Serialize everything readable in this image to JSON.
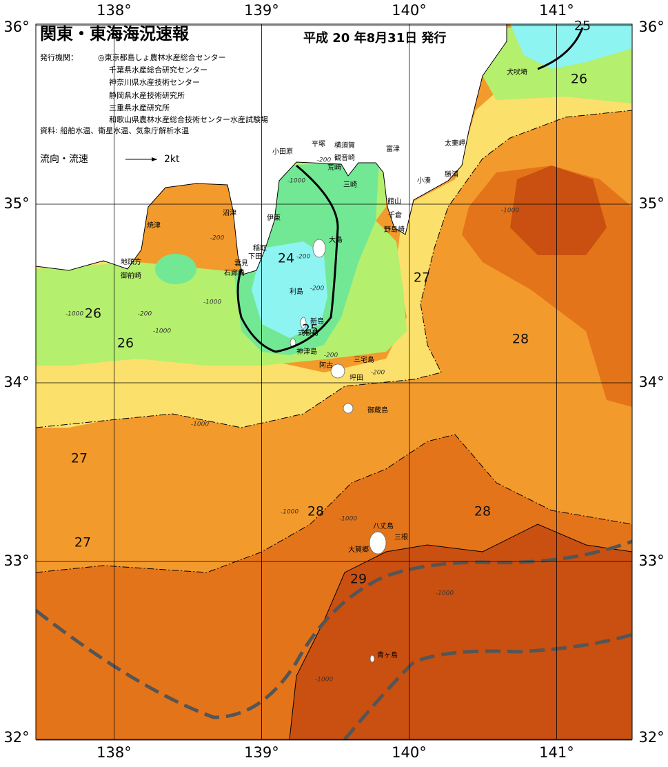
{
  "header": {
    "title": "関東・東海海況速報",
    "issued": "平成 20 年8月31日 発行",
    "publisher_label": "発行機関：",
    "publishers": [
      "◎東京都島しょ農林水産総合センター",
      "千葉県水産総合研究センター",
      "神奈川県水産技術センター",
      "静岡県水産技術研究所",
      "三重県水産研究所",
      "和歌山県農林水産総合技術センター水産試験場"
    ],
    "sources": "資料: 船舶水温、衛星水温、気象庁解析水温",
    "current_legend": {
      "label": "流向・流速",
      "scale": "2kt"
    }
  },
  "axes": {
    "longitude": [
      {
        "value": 138,
        "label": "138°"
      },
      {
        "value": 139,
        "label": "139°"
      },
      {
        "value": 140,
        "label": "140°"
      },
      {
        "value": 141,
        "label": "141°"
      }
    ],
    "latitude": [
      {
        "value": 36,
        "label": "36°"
      },
      {
        "value": 35,
        "label": "35°"
      },
      {
        "value": 34,
        "label": "34°"
      },
      {
        "value": 33,
        "label": "33°"
      },
      {
        "value": 32,
        "label": "32°"
      }
    ]
  },
  "isotherm_labels": [
    25,
    26,
    24,
    25,
    26,
    26,
    27,
    28,
    27,
    28,
    28,
    27,
    29
  ],
  "depth_labels": [
    -200,
    -200,
    -200,
    -200,
    -200,
    -1000,
    -1000,
    -1000,
    -1000,
    -1000,
    -1000,
    -1000,
    -1000,
    -1000,
    -1000,
    -200,
    -200
  ],
  "places": [
    "犬吠埼",
    "太東岬",
    "勝浦",
    "小湊",
    "館山",
    "千倉",
    "野島崎",
    "富津",
    "横須賀",
    "平塚",
    "観音崎",
    "荒崎",
    "三崎",
    "小田原",
    "伊東",
    "大島",
    "稲取",
    "下田",
    "雲見",
    "石廊崎",
    "沼津",
    "焼津",
    "地頭方",
    "御前崎",
    "利島",
    "新島",
    "式根島",
    "神津島",
    "三宅島",
    "阿古",
    "坪田",
    "御蔵島",
    "八丈島",
    "三根",
    "大賀郷",
    "青ヶ島"
  ]
}
